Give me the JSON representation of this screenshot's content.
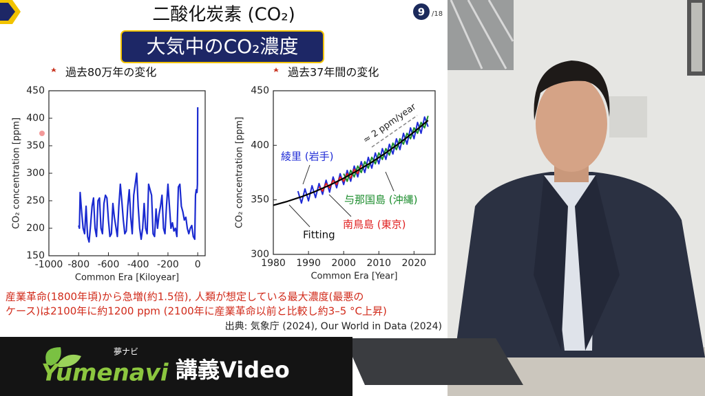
{
  "slide": {
    "title": "二酸化炭素 (CO₂)",
    "banner": "大気中のCO₂濃度",
    "page": "9",
    "page_total": "/18",
    "caption_lines": [
      "産業革命(1800年頃)から急増(約1.5倍), 人類が想定している最大濃度(最悪の",
      "ケース)は2100年に約1200 ppm (2100年に産業革命以前と比較し約3–5 °C上昇)"
    ],
    "source": "出典: 気象庁 (2024), Our World in Data (2024)"
  },
  "footer": {
    "furigana": "夢ナビ",
    "brand": "Yumenavi",
    "label": "講義Video"
  },
  "chart_data": [
    {
      "type": "line",
      "title": "過去80万年の変化",
      "x_label": "Common Era [Kiloyear]",
      "y_label": "CO₂ concentration [ppm]",
      "color": "#1a2ad0",
      "x": [
        -800,
        -795,
        -790,
        -780,
        -770,
        -760,
        -750,
        -740,
        -730,
        -720,
        -710,
        -700,
        -690,
        -680,
        -670,
        -660,
        -650,
        -640,
        -630,
        -620,
        -610,
        -600,
        -590,
        -580,
        -570,
        -560,
        -540,
        -530,
        -520,
        -510,
        -500,
        -490,
        -480,
        -470,
        -460,
        -450,
        -440,
        -430,
        -420,
        -410,
        -400,
        -390,
        -380,
        -370,
        -360,
        -350,
        -340,
        -330,
        -320,
        -310,
        -300,
        -290,
        -280,
        -270,
        -260,
        -250,
        -240,
        -230,
        -220,
        -210,
        -200,
        -190,
        -180,
        -170,
        -160,
        -150,
        -140,
        -130,
        -120,
        -110,
        -100,
        -90,
        -80,
        -70,
        -60,
        -50,
        -40,
        -30,
        -20,
        -15,
        -10,
        -5,
        -2,
        0
      ],
      "values": [
        205,
        200,
        265,
        230,
        200,
        190,
        240,
        185,
        175,
        205,
        240,
        255,
        200,
        185,
        250,
        255,
        200,
        190,
        245,
        260,
        255,
        215,
        185,
        190,
        245,
        220,
        185,
        240,
        280,
        250,
        215,
        190,
        195,
        240,
        270,
        220,
        190,
        260,
        280,
        300,
        240,
        200,
        180,
        200,
        245,
        200,
        190,
        280,
        270,
        260,
        190,
        185,
        235,
        200,
        225,
        240,
        260,
        200,
        190,
        240,
        280,
        240,
        200,
        210,
        195,
        200,
        185,
        275,
        280,
        240,
        230,
        215,
        220,
        200,
        190,
        200,
        205,
        185,
        180,
        260,
        270,
        265,
        280,
        420
      ],
      "xlim": [
        -1000,
        50
      ],
      "ylim": [
        150,
        450
      ],
      "xticks": [
        -1000,
        -800,
        -600,
        -400,
        -200,
        0
      ],
      "yticks": [
        150,
        200,
        250,
        300,
        350,
        400,
        450
      ]
    },
    {
      "type": "line",
      "title": "過去37年間の変化",
      "x_label": "Common Era [Year]",
      "y_label": "CO₂ concentration [ppm]",
      "series": [
        {
          "name": "綾里 (岩手)",
          "color": "#1f2bd6",
          "x": [
            1987,
            1988,
            1989,
            1990,
            1991,
            1992,
            1993,
            1994,
            1995,
            1996,
            1997,
            1998,
            1999,
            2000,
            2001,
            2002,
            2003,
            2004,
            2005,
            2006,
            2007,
            2008,
            2009,
            2010,
            2011,
            2012,
            2013,
            2014,
            2015,
            2016,
            2017,
            2018,
            2019,
            2020,
            2021,
            2022,
            2023,
            2024
          ],
          "values": [
            358,
            347,
            360,
            349,
            363,
            352,
            365,
            355,
            368,
            357,
            371,
            361,
            374,
            364,
            377,
            367,
            381,
            371,
            385,
            375,
            389,
            379,
            393,
            383,
            397,
            387,
            401,
            392,
            406,
            396,
            411,
            401,
            416,
            406,
            421,
            411,
            426,
            417
          ]
        },
        {
          "name": "南鳥島 (東京)",
          "color": "#e02020",
          "x": [
            1993,
            1994,
            1995,
            1996,
            1997,
            1998,
            1999,
            2000,
            2001,
            2002,
            2003,
            2004,
            2005
          ],
          "values": [
            362,
            358,
            365,
            361,
            368,
            364,
            371,
            367,
            374,
            370,
            378,
            374,
            382
          ]
        },
        {
          "name": "与那国島 (沖縄)",
          "color": "#1b8c2c",
          "x": [
            2000,
            2001,
            2002,
            2003,
            2004,
            2005,
            2006,
            2007,
            2008,
            2009,
            2010,
            2011,
            2012,
            2013,
            2014,
            2015,
            2016,
            2017,
            2018,
            2019,
            2020,
            2021,
            2022,
            2023,
            2024
          ],
          "values": [
            374,
            367,
            377,
            371,
            381,
            375,
            385,
            379,
            389,
            383,
            393,
            387,
            397,
            391,
            402,
            396,
            406,
            401,
            411,
            406,
            416,
            411,
            421,
            416,
            427
          ]
        },
        {
          "name": "Fitting",
          "color": "#000000",
          "x": [
            1980,
            1984,
            1988,
            1992,
            1996,
            2000,
            2004,
            2008,
            2012,
            2016,
            2020,
            2024
          ],
          "values": [
            345,
            348.6,
            352.8,
            357.8,
            363.4,
            369.8,
            376.9,
            384.6,
            393.1,
            402.3,
            412.2,
            422.8
          ]
        }
      ],
      "annotations": [
        "≈ 2 ppm/year"
      ],
      "xlim": [
        1980,
        2026
      ],
      "ylim": [
        300,
        450
      ],
      "xticks": [
        1980,
        1990,
        2000,
        2010,
        2020
      ],
      "yticks": [
        300,
        350,
        400,
        450
      ]
    }
  ]
}
